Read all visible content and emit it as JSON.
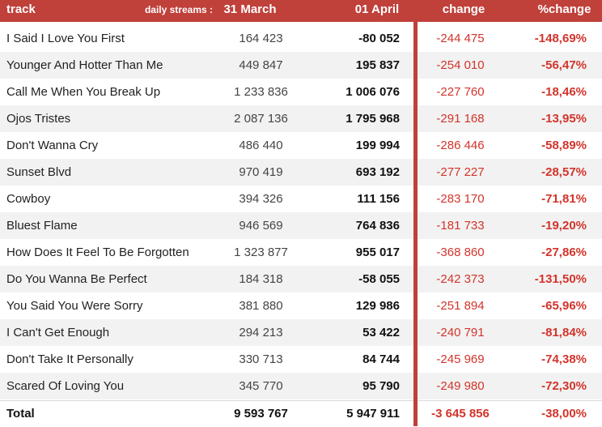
{
  "header": {
    "track": "track",
    "daily_streams": "daily streams :",
    "col1": "31 March",
    "col2": "01 April",
    "col3": "change",
    "col4": "%change"
  },
  "rows": [
    {
      "track": "I Said I Love You First",
      "d1": "164 423",
      "d2": "-80 052",
      "change": "-244 475",
      "pct": "-148,69%"
    },
    {
      "track": "Younger And Hotter Than Me",
      "d1": "449 847",
      "d2": "195 837",
      "change": "-254 010",
      "pct": "-56,47%"
    },
    {
      "track": "Call Me When You Break Up",
      "d1": "1 233 836",
      "d2": "1 006 076",
      "change": "-227 760",
      "pct": "-18,46%"
    },
    {
      "track": "Ojos Tristes",
      "d1": "2 087 136",
      "d2": "1 795 968",
      "change": "-291 168",
      "pct": "-13,95%"
    },
    {
      "track": "Don't Wanna Cry",
      "d1": "486 440",
      "d2": "199 994",
      "change": "-286 446",
      "pct": "-58,89%"
    },
    {
      "track": "Sunset Blvd",
      "d1": "970 419",
      "d2": "693 192",
      "change": "-277 227",
      "pct": "-28,57%"
    },
    {
      "track": "Cowboy",
      "d1": "394 326",
      "d2": "111 156",
      "change": "-283 170",
      "pct": "-71,81%"
    },
    {
      "track": "Bluest Flame",
      "d1": "946 569",
      "d2": "764 836",
      "change": "-181 733",
      "pct": "-19,20%"
    },
    {
      "track": "How Does It Feel To Be Forgotten",
      "d1": "1 323 877",
      "d2": "955 017",
      "change": "-368 860",
      "pct": "-27,86%"
    },
    {
      "track": "Do You Wanna Be Perfect",
      "d1": "184 318",
      "d2": "-58 055",
      "change": "-242 373",
      "pct": "-131,50%"
    },
    {
      "track": "You Said You Were Sorry",
      "d1": "381 880",
      "d2": "129 986",
      "change": "-251 894",
      "pct": "-65,96%"
    },
    {
      "track": "I Can't Get Enough",
      "d1": "294 213",
      "d2": "53 422",
      "change": "-240 791",
      "pct": "-81,84%"
    },
    {
      "track": "Don't Take It Personally",
      "d1": "330 713",
      "d2": "84 744",
      "change": "-245 969",
      "pct": "-74,38%"
    },
    {
      "track": "Scared Of Loving You",
      "d1": "345 770",
      "d2": "95 790",
      "change": "-249 980",
      "pct": "-72,30%"
    }
  ],
  "total": {
    "track": "Total",
    "d1": "9 593 767",
    "d2": "5 947 911",
    "change": "-3 645 856",
    "pct": "-38,00%"
  },
  "colors": {
    "header_bg": "#c0403a",
    "negative": "#d2342b",
    "stripe": "#f2f2f2"
  }
}
